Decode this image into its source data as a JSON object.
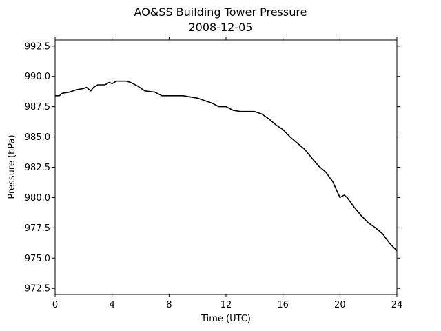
{
  "chart_data": {
    "type": "line",
    "title": "AO&SS Building Tower Pressure",
    "subtitle": "2008-12-05",
    "xlabel": "Time (UTC)",
    "ylabel": "Pressure (hPa)",
    "xlim": [
      0,
      24
    ],
    "ylim": [
      972.0,
      993.0
    ],
    "xticks": [
      0,
      4,
      8,
      12,
      16,
      20,
      24
    ],
    "xtick_labels": [
      "0",
      "4",
      "8",
      "12",
      "16",
      "20",
      "24"
    ],
    "yticks": [
      972.5,
      975.0,
      977.5,
      980.0,
      982.5,
      985.0,
      987.5,
      990.0,
      992.5
    ],
    "ytick_labels": [
      "972.5",
      "975.0",
      "977.5",
      "980.0",
      "982.5",
      "985.0",
      "987.5",
      "990.0",
      "992.5"
    ],
    "grid": false,
    "series": [
      {
        "color": "#000000",
        "x": [
          0,
          0.3,
          0.5,
          1.0,
          1.5,
          2.0,
          2.2,
          2.5,
          2.7,
          3.0,
          3.5,
          3.8,
          4.0,
          4.3,
          4.6,
          5.0,
          5.3,
          5.8,
          6.3,
          7.0,
          7.5,
          8.0,
          8.5,
          9.0,
          9.5,
          10.0,
          10.5,
          11.0,
          11.5,
          12.0,
          12.5,
          13.0,
          13.5,
          14.0,
          14.5,
          15.0,
          15.5,
          16.0,
          16.5,
          17.0,
          17.5,
          18.0,
          18.5,
          19.0,
          19.5,
          19.8,
          20.0,
          20.3,
          20.5,
          21.0,
          21.5,
          22.0,
          22.5,
          23.0,
          23.5,
          24.0
        ],
        "y": [
          988.4,
          988.4,
          988.6,
          988.7,
          988.9,
          989.0,
          989.1,
          988.8,
          989.1,
          989.3,
          989.3,
          989.5,
          989.4,
          989.6,
          989.6,
          989.6,
          989.5,
          989.2,
          988.8,
          988.7,
          988.4,
          988.4,
          988.4,
          988.4,
          988.3,
          988.2,
          988.0,
          987.8,
          987.5,
          987.5,
          987.2,
          987.1,
          987.1,
          987.1,
          986.9,
          986.5,
          986.0,
          985.6,
          985.0,
          984.5,
          984.0,
          983.3,
          982.6,
          982.1,
          981.3,
          980.5,
          980.0,
          980.2,
          980.0,
          979.2,
          978.5,
          977.9,
          977.5,
          977.0,
          976.2,
          975.6
        ]
      }
    ]
  }
}
